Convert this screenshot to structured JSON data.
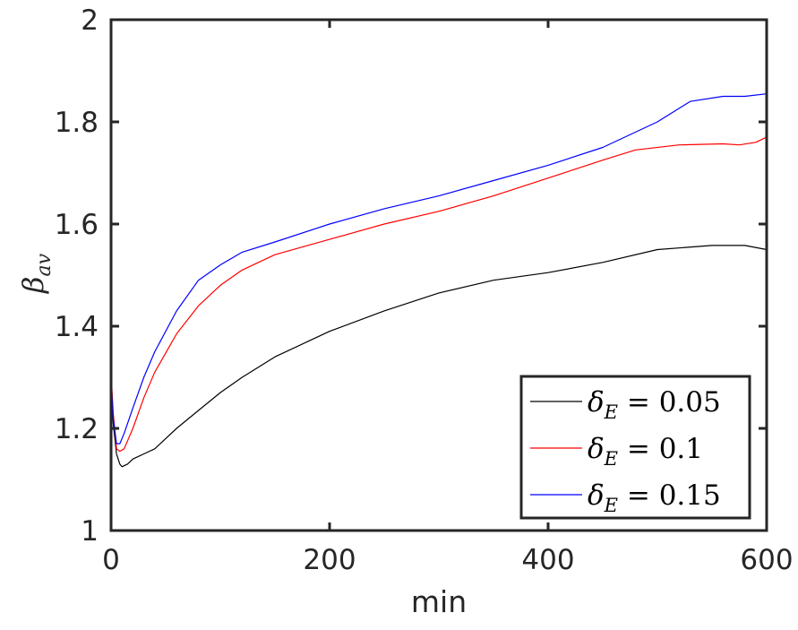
{
  "chart_data": {
    "type": "line",
    "title": "",
    "xlabel": "min",
    "ylabel": "β",
    "ylabel_subscript": "av",
    "xlim": [
      0,
      600
    ],
    "ylim": [
      1,
      2
    ],
    "xticks": [
      "0",
      "200",
      "400",
      "600"
    ],
    "yticks": [
      "1",
      "1.2",
      "1.4",
      "1.6",
      "1.8",
      "2"
    ],
    "grid": false,
    "legend_position": "bottom-right",
    "series": [
      {
        "name": "δE = 0.05",
        "label_symbol": "δ",
        "label_subscript": "E",
        "label_rest": " = 0.05",
        "color": "#000000",
        "points": [
          [
            0,
            1.3
          ],
          [
            2,
            1.21
          ],
          [
            5,
            1.15
          ],
          [
            8,
            1.13
          ],
          [
            10,
            1.125
          ],
          [
            15,
            1.13
          ],
          [
            20,
            1.14
          ],
          [
            30,
            1.15
          ],
          [
            40,
            1.16
          ],
          [
            50,
            1.18
          ],
          [
            60,
            1.2
          ],
          [
            80,
            1.235
          ],
          [
            100,
            1.27
          ],
          [
            120,
            1.3
          ],
          [
            150,
            1.34
          ],
          [
            180,
            1.37
          ],
          [
            200,
            1.39
          ],
          [
            250,
            1.43
          ],
          [
            300,
            1.465
          ],
          [
            350,
            1.49
          ],
          [
            400,
            1.505
          ],
          [
            450,
            1.525
          ],
          [
            500,
            1.55
          ],
          [
            550,
            1.558
          ],
          [
            580,
            1.558
          ],
          [
            600,
            1.55
          ]
        ]
      },
      {
        "name": "δE = 0.1",
        "label_symbol": "δ",
        "label_subscript": "E",
        "label_rest": " = 0.1",
        "color": "#ff0000",
        "points": [
          [
            0,
            1.31
          ],
          [
            2,
            1.23
          ],
          [
            5,
            1.16
          ],
          [
            8,
            1.155
          ],
          [
            12,
            1.16
          ],
          [
            20,
            1.2
          ],
          [
            30,
            1.26
          ],
          [
            40,
            1.31
          ],
          [
            60,
            1.385
          ],
          [
            80,
            1.44
          ],
          [
            100,
            1.48
          ],
          [
            120,
            1.51
          ],
          [
            150,
            1.54
          ],
          [
            200,
            1.57
          ],
          [
            250,
            1.6
          ],
          [
            300,
            1.625
          ],
          [
            350,
            1.655
          ],
          [
            400,
            1.69
          ],
          [
            450,
            1.725
          ],
          [
            480,
            1.745
          ],
          [
            520,
            1.755
          ],
          [
            560,
            1.757
          ],
          [
            575,
            1.755
          ],
          [
            590,
            1.76
          ],
          [
            600,
            1.77
          ]
        ]
      },
      {
        "name": "δE = 0.15",
        "label_symbol": "δ",
        "label_subscript": "E",
        "label_rest": " = 0.15",
        "color": "#0000ff",
        "points": [
          [
            0,
            1.3
          ],
          [
            2,
            1.22
          ],
          [
            5,
            1.17
          ],
          [
            8,
            1.17
          ],
          [
            12,
            1.19
          ],
          [
            20,
            1.24
          ],
          [
            30,
            1.3
          ],
          [
            40,
            1.35
          ],
          [
            60,
            1.43
          ],
          [
            80,
            1.49
          ],
          [
            100,
            1.52
          ],
          [
            120,
            1.545
          ],
          [
            150,
            1.565
          ],
          [
            200,
            1.6
          ],
          [
            250,
            1.63
          ],
          [
            300,
            1.655
          ],
          [
            350,
            1.685
          ],
          [
            400,
            1.715
          ],
          [
            450,
            1.75
          ],
          [
            500,
            1.8
          ],
          [
            530,
            1.84
          ],
          [
            560,
            1.85
          ],
          [
            580,
            1.85
          ],
          [
            600,
            1.855
          ]
        ]
      }
    ]
  }
}
